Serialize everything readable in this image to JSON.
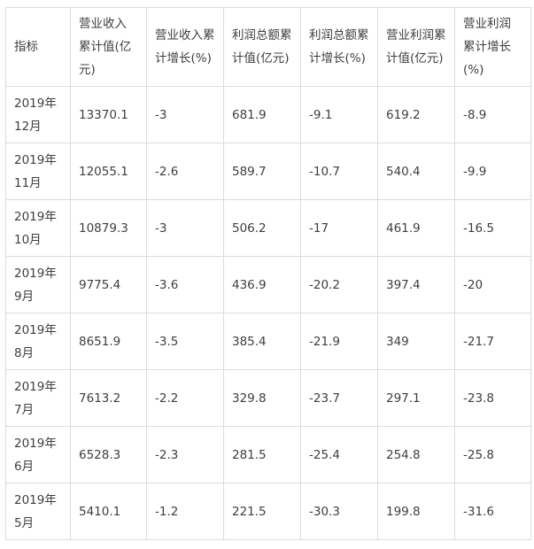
{
  "headers": [
    "指标",
    "营业收入累计值(亿元)",
    "营业收入累计增长(%)",
    "利润总额累计值(亿元)",
    "利润总额累计增长(%)",
    "营业利润累计值(亿元)",
    "营业利润累计增长(%)"
  ],
  "rows": [
    [
      "2019年12月",
      "13370.1",
      "-3",
      "681.9",
      "-9.1",
      "619.2",
      "-8.9"
    ],
    [
      "2019年11月",
      "12055.1",
      "-2.6",
      "589.7",
      "-10.7",
      "540.4",
      "-9.9"
    ],
    [
      "2019年10月",
      "10879.3",
      "-3",
      "506.2",
      "-17",
      "461.9",
      "-16.5"
    ],
    [
      "2019年9月",
      "9775.4",
      "-3.6",
      "436.9",
      "-20.2",
      "397.4",
      "-20"
    ],
    [
      "2019年8月",
      "8651.9",
      "-3.5",
      "385.4",
      "-21.9",
      "349",
      "-21.7"
    ],
    [
      "2019年7月",
      "7613.2",
      "-2.2",
      "329.8",
      "-23.7",
      "297.1",
      "-23.8"
    ],
    [
      "2019年6月",
      "6528.3",
      "-2.3",
      "281.5",
      "-25.4",
      "254.8",
      "-25.8"
    ],
    [
      "2019年5月",
      "5410.1",
      "-1.2",
      "221.5",
      "-30.3",
      "199.8",
      "-31.6"
    ]
  ]
}
